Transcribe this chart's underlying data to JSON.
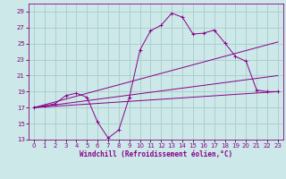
{
  "bg_color": "#cce8e8",
  "grid_color": "#aacccc",
  "line_color": "#880088",
  "xlabel": "Windchill (Refroidissement éolien,°C)",
  "xlim": [
    -0.5,
    23.5
  ],
  "ylim": [
    13,
    30
  ],
  "xticks": [
    0,
    1,
    2,
    3,
    4,
    5,
    6,
    7,
    8,
    9,
    10,
    11,
    12,
    13,
    14,
    15,
    16,
    17,
    18,
    19,
    20,
    21,
    22,
    23
  ],
  "yticks": [
    13,
    15,
    17,
    19,
    21,
    23,
    25,
    27,
    29
  ],
  "main_x": [
    0,
    1,
    2,
    3,
    4,
    5,
    6,
    7,
    8,
    9,
    10,
    11,
    12,
    13,
    14,
    15,
    16,
    17,
    18,
    19,
    20,
    21,
    22,
    23
  ],
  "main_y": [
    17.0,
    17.2,
    17.5,
    18.5,
    18.8,
    18.3,
    15.2,
    13.2,
    14.2,
    18.3,
    24.2,
    26.6,
    27.3,
    28.8,
    28.3,
    26.2,
    26.3,
    26.7,
    25.1,
    23.4,
    22.8,
    19.2,
    19.0,
    19.0
  ],
  "line1_x": [
    0,
    23
  ],
  "line1_y": [
    17.0,
    19.0
  ],
  "line2_x": [
    0,
    23
  ],
  "line2_y": [
    17.0,
    21.0
  ],
  "line3_x": [
    0,
    23
  ],
  "line3_y": [
    17.0,
    25.2
  ]
}
